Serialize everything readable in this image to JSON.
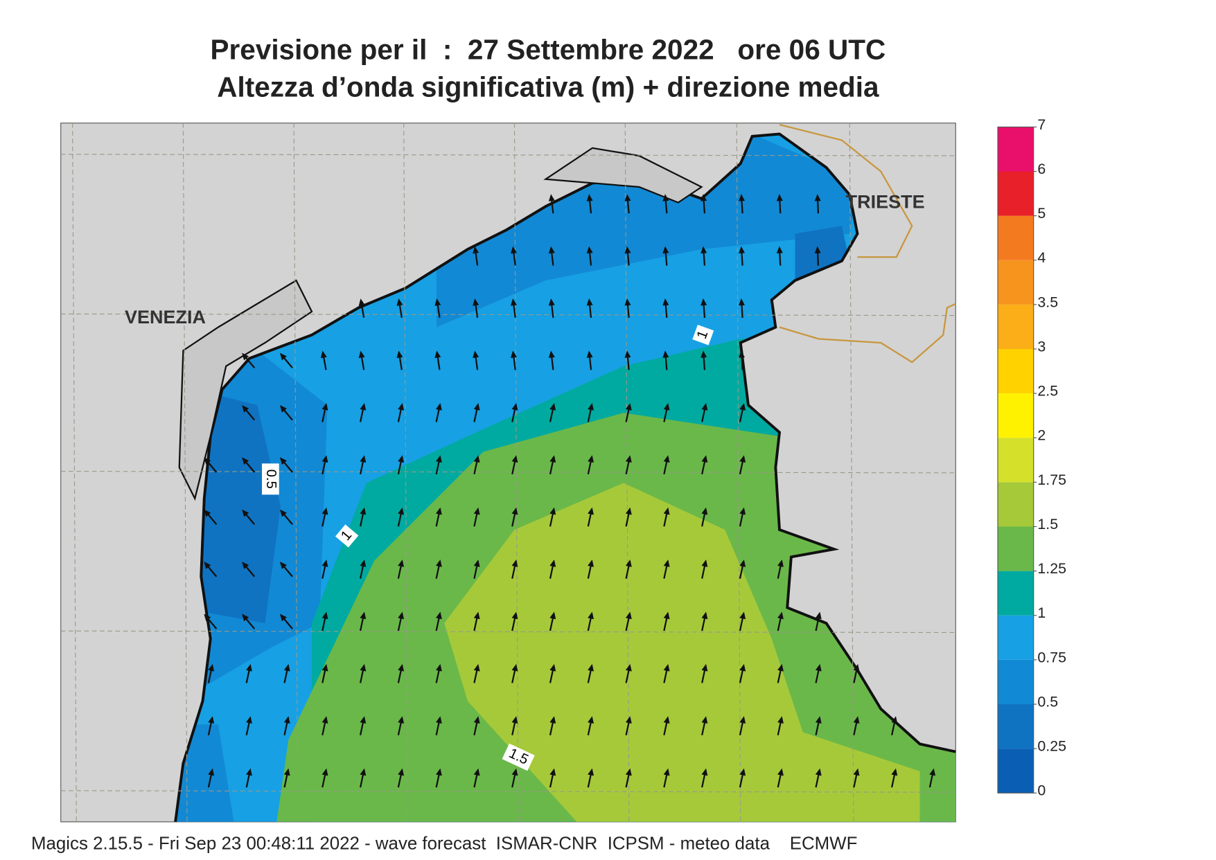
{
  "header": {
    "title": "Previsione per il  :  27 Settembre 2022   ore 06 UTC",
    "subtitle": "Altezza d’onda significativa (m) + direzione media"
  },
  "map": {
    "places": [
      "VENEZIA",
      "TRIESTE"
    ],
    "contour_labels": [
      "0.5",
      "1",
      "1",
      "1.5"
    ]
  },
  "legend": {
    "ticks": [
      0,
      0.25,
      0.5,
      0.75,
      1,
      1.25,
      1.5,
      1.75,
      2,
      2.5,
      3,
      3.5,
      4,
      5,
      6,
      7
    ],
    "colors": [
      "#0a5fb4",
      "#0f73c2",
      "#1289d4",
      "#17a0e4",
      "#00aaa0",
      "#6ab84a",
      "#a6c93a",
      "#d4e02a",
      "#fff200",
      "#ffd200",
      "#fbae18",
      "#f7941e",
      "#f47a20",
      "#e8202a",
      "#e8106a"
    ]
  },
  "footer": "Magics 2.15.5 - Fri Sep 23 00:48:11 2022 - wave forecast  ISMAR-CNR  ICPSM - meteo data    ECMWF"
}
